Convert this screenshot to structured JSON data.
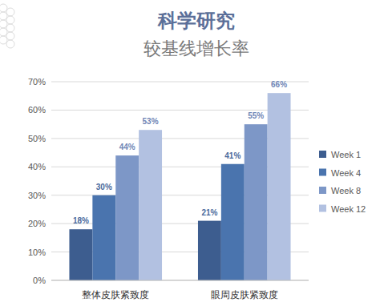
{
  "chart_data": {
    "type": "bar",
    "title": "科学研究",
    "subtitle": "较基线增长率",
    "categories": [
      "整体皮肤紧致度",
      "眼周皮肤紧致度"
    ],
    "series": [
      {
        "name": "Week 1",
        "color": "#3d5d8f",
        "values": [
          18,
          21
        ],
        "value_labels": [
          "18%",
          "21%"
        ]
      },
      {
        "name": "Week 4",
        "color": "#4a74ae",
        "values": [
          30,
          41
        ],
        "value_labels": [
          "30%",
          "41%"
        ]
      },
      {
        "name": "Week 8",
        "color": "#7d97c7",
        "values": [
          44,
          55
        ],
        "value_labels": [
          "44%",
          "55%"
        ]
      },
      {
        "name": "Week 12",
        "color": "#b2c1e1",
        "values": [
          53,
          66
        ],
        "value_labels": [
          "53%",
          "66%"
        ]
      }
    ],
    "ylim": [
      0,
      70
    ],
    "yticks": [
      {
        "value": 0,
        "label": "0%"
      },
      {
        "value": 10,
        "label": "10%"
      },
      {
        "value": 20,
        "label": "20%"
      },
      {
        "value": 30,
        "label": "30%"
      },
      {
        "value": 40,
        "label": "40%"
      },
      {
        "value": 50,
        "label": "50%"
      },
      {
        "value": 60,
        "label": "60%"
      },
      {
        "value": 70,
        "label": "70%"
      }
    ],
    "grid": true,
    "legend": "right",
    "data_labels": true
  }
}
